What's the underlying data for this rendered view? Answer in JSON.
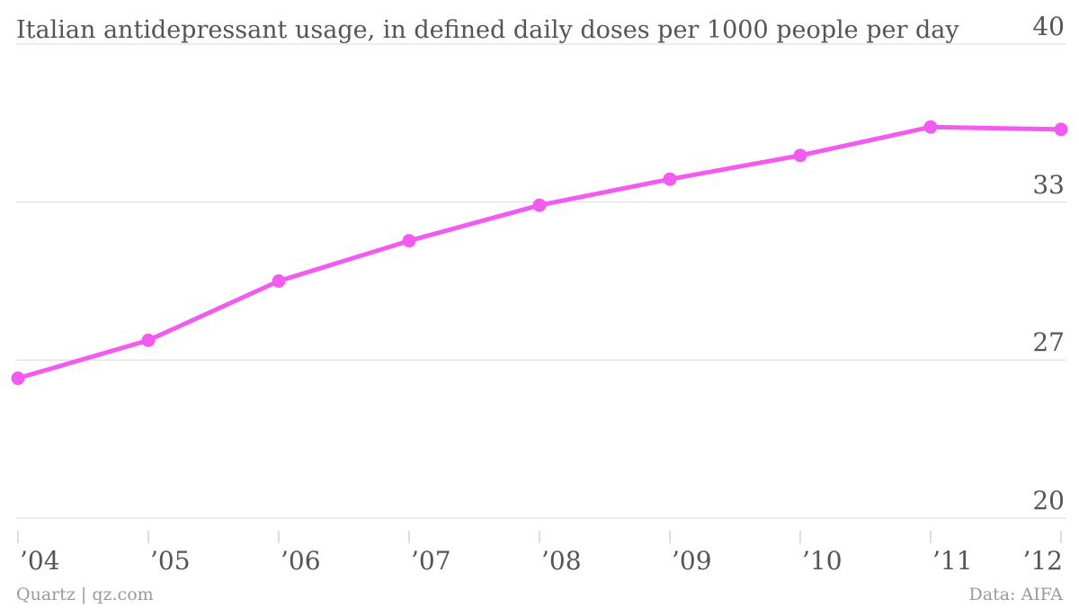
{
  "chart_data": {
    "type": "line",
    "title": "Italian antidepressant usage, in defined daily doses per 1000 people per day",
    "x": [
      "’04",
      "’05",
      "’06",
      "’07",
      "’08",
      "’09",
      "’10",
      "’11",
      "’12"
    ],
    "series": [
      {
        "values": [
          25.9,
          27.5,
          30.0,
          31.7,
          33.2,
          34.3,
          35.3,
          36.5,
          36.4
        ],
        "color": "#f35af0"
      }
    ],
    "ylim": [
      20,
      40
    ],
    "yticks": [
      "40",
      "33",
      "27",
      "20"
    ],
    "ytick_values": [
      40,
      33.33,
      26.67,
      20
    ],
    "xlabel": "",
    "ylabel": "",
    "grid": true,
    "axis_side": "right"
  },
  "footer": {
    "source_left": "Quartz | qz.com",
    "source_right": "Data: AIFA"
  }
}
